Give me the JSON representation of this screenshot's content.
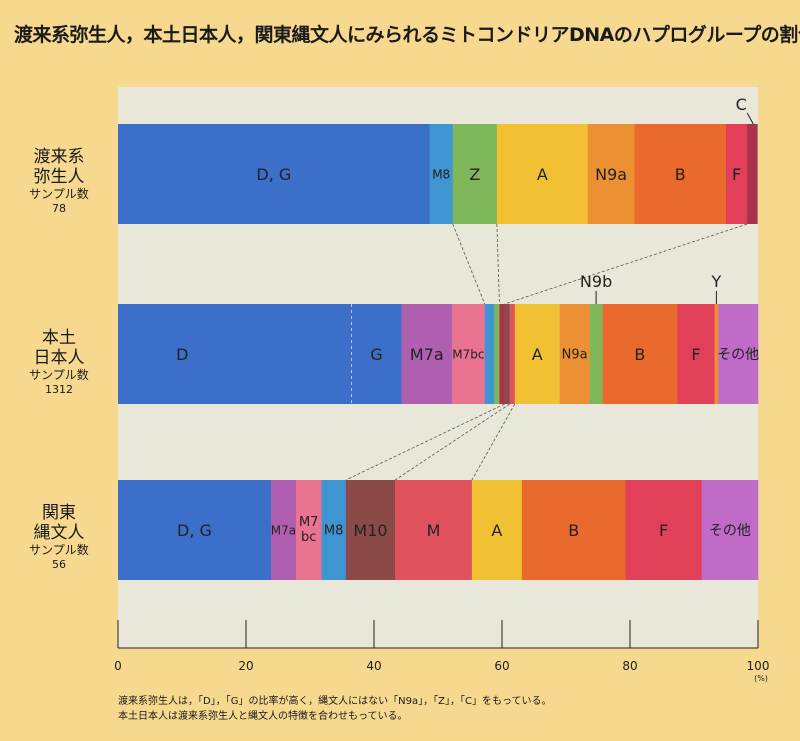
{
  "title": "渡来系弥生人，本土日本人，関東縄文人にみられるミトコンドリアDNAのハプログループの割合",
  "rows": [
    {
      "label_line1": "渡来系",
      "label_line2": "弥生人",
      "sample_label": "サンプル数",
      "sample_count": "78"
    },
    {
      "label_line1": "本土",
      "label_line2": "日本人",
      "sample_label": "サンプル数",
      "sample_count": "1312"
    },
    {
      "label_line1": "関東",
      "label_line2": "縄文人",
      "sample_label": "サンプル数",
      "sample_count": "56"
    }
  ],
  "note": {
    "line1": "渡来系弥生人は，「D」，「G」の比率が高く，縄文人にはない「N9a」，「Z」，「C」をもっている。",
    "line2": "本土日本人は渡来系弥生人と縄文人の特徴を合わせもっている。"
  },
  "chart_data": {
    "type": "bar",
    "orientation": "horizontal",
    "stacked": true,
    "title": "渡来系弥生人，本土日本人，関東縄文人にみられるミトコンドリアDNAのハプログループの割合",
    "xlabel": "",
    "ylabel": "",
    "x_unit": "(%)",
    "xlim": [
      0,
      100
    ],
    "x_ticks": [
      "0",
      "20",
      "40",
      "60",
      "80",
      "100"
    ],
    "x_tick_values": [
      0,
      20,
      40,
      60,
      80,
      100
    ],
    "grid": false,
    "categories": [
      "渡来系弥生人",
      "本土日本人",
      "関東縄文人"
    ],
    "rows": [
      {
        "name": "渡来系弥生人",
        "segments": [
          {
            "label": "D, G",
            "value": 48.7,
            "color": "#3c6fc9"
          },
          {
            "label": "M8",
            "value": 3.6,
            "color": "#3f95d2",
            "font": 12
          },
          {
            "label": "Z",
            "value": 6.9,
            "color": "#80b65a"
          },
          {
            "label": "A",
            "value": 14.2,
            "color": "#f2c033"
          },
          {
            "label": "N9a",
            "value": 7.3,
            "color": "#ec9133"
          },
          {
            "label": "B",
            "value": 14.3,
            "color": "#ea6a2e"
          },
          {
            "label": "F",
            "value": 3.3,
            "color": "#e23f58"
          },
          {
            "label": "C",
            "value": 1.6,
            "color": "#a8324a",
            "callout": true
          }
        ]
      },
      {
        "name": "本土日本人",
        "segments": [
          {
            "label": "D",
            "value": 36.5,
            "color": "#3c6fc9",
            "dashed_end": true,
            "label_shift": -8.2
          },
          {
            "label": "G",
            "value": 7.8,
            "color": "#3c6fc9"
          },
          {
            "label": "M7a",
            "value": 7.9,
            "color": "#b05fb0"
          },
          {
            "label": "M7bc",
            "value": 5.1,
            "color": "#ea7391",
            "font": 12
          },
          {
            "label": "",
            "value": 1.5,
            "color": "#3f95d2"
          },
          {
            "label": "",
            "value": 0.8,
            "color": "#80b65a"
          },
          {
            "label": "",
            "value": 0.8,
            "color": "#a8324a"
          },
          {
            "label": "",
            "value": 0.8,
            "color": "#8b4a48"
          },
          {
            "label": "",
            "value": 0.8,
            "color": "#e0535e"
          },
          {
            "label": "A",
            "value": 7.0,
            "color": "#f2c033"
          },
          {
            "label": "N9a",
            "value": 4.7,
            "color": "#ec9133",
            "font": 13
          },
          {
            "label": "N9b",
            "value": 2.0,
            "color": "#80b65a",
            "callout": true
          },
          {
            "label": "B",
            "value": 11.7,
            "color": "#ea6a2e"
          },
          {
            "label": "F",
            "value": 5.8,
            "color": "#e23f58"
          },
          {
            "label": "Y",
            "value": 0.6,
            "color": "#ec9133",
            "callout": true
          },
          {
            "label": "その他",
            "value": 6.2,
            "color": "#c06bc8",
            "font": 14
          }
        ]
      },
      {
        "name": "関東縄文人",
        "segments": [
          {
            "label": "D, G",
            "value": 23.9,
            "color": "#3c6fc9"
          },
          {
            "label": "M7a",
            "value": 3.9,
            "color": "#b05fb0",
            "font": 12
          },
          {
            "label": "M7 bc",
            "value": 4.0,
            "color": "#ea7391",
            "font": 13,
            "two_line": true
          },
          {
            "label": "M8",
            "value": 3.8,
            "color": "#3f95d2",
            "font": 13
          },
          {
            "label": "M10",
            "value": 7.7,
            "color": "#8b4a48"
          },
          {
            "label": "M",
            "value": 12.0,
            "color": "#e0535e"
          },
          {
            "label": "A",
            "value": 7.8,
            "color": "#f2c033"
          },
          {
            "label": "B",
            "value": 16.2,
            "color": "#ea6a2e"
          },
          {
            "label": "F",
            "value": 11.9,
            "color": "#e23f58"
          },
          {
            "label": "その他",
            "value": 8.8,
            "color": "#c06bc8",
            "font": 14
          }
        ]
      }
    ]
  }
}
